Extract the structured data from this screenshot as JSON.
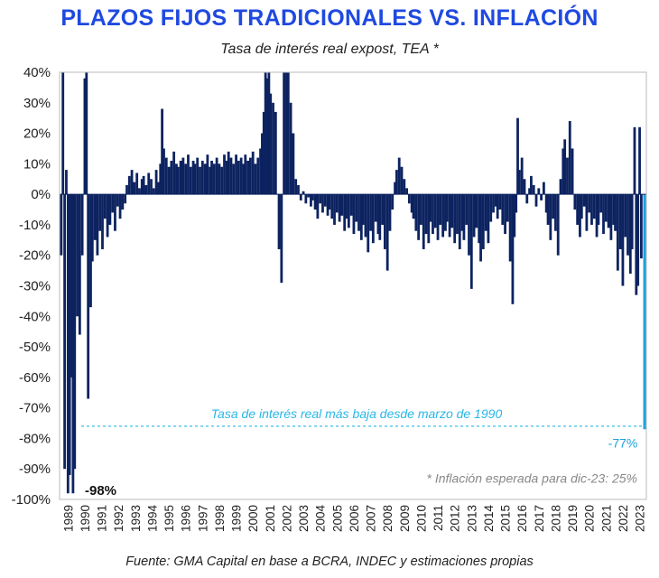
{
  "chart_data": {
    "type": "bar",
    "title": "PLAZOS FIJOS TRADICIONALES VS. INFLACIÓN",
    "subtitle": "Tasa de interés real expost, TEA *",
    "source": "Fuente: GMA Capital en base a BCRA, INDEC y estimaciones propias",
    "ylim": [
      -100,
      40
    ],
    "yticks": [
      40,
      30,
      20,
      10,
      0,
      -10,
      -20,
      -30,
      -40,
      -50,
      -60,
      -70,
      -80,
      -90,
      -100
    ],
    "ytick_labels": [
      "40%",
      "30%",
      "20%",
      "10%",
      "0%",
      "-10%",
      "-20%",
      "-30%",
      "-40%",
      "-50%",
      "-60%",
      "-70%",
      "-80%",
      "-90%",
      "-100%"
    ],
    "x_labels": [
      "1989",
      "1990",
      "1991",
      "1992",
      "1993",
      "1994",
      "1995",
      "1996",
      "1997",
      "1998",
      "1999",
      "2000",
      "2001",
      "2002",
      "2003",
      "2004",
      "2005",
      "2006",
      "2007",
      "2008",
      "2009",
      "2010",
      "2011",
      "2012",
      "2013",
      "2014",
      "2015",
      "2016",
      "2017",
      "2018",
      "2019",
      "2020",
      "2021",
      "2022",
      "2023"
    ],
    "x_range": [
      1989.0,
      2023.9
    ],
    "bar_color": "#0d2360",
    "highlight_color": "#1aa3dc",
    "series": [
      {
        "name": "Tasa de interés real",
        "points": [
          [
            1989.1,
            -20
          ],
          [
            1989.2,
            40
          ],
          [
            1989.3,
            -90
          ],
          [
            1989.4,
            8
          ],
          [
            1989.5,
            -98
          ],
          [
            1989.6,
            -92
          ],
          [
            1989.7,
            -60
          ],
          [
            1989.8,
            -98
          ],
          [
            1989.9,
            -90
          ],
          [
            1990.05,
            -40
          ],
          [
            1990.2,
            -46
          ],
          [
            1990.35,
            -20
          ],
          [
            1990.5,
            38
          ],
          [
            1990.6,
            40
          ],
          [
            1990.7,
            -67
          ],
          [
            1990.85,
            -37
          ],
          [
            1990.95,
            -22
          ],
          [
            1991.1,
            -15
          ],
          [
            1991.25,
            -20
          ],
          [
            1991.4,
            -12
          ],
          [
            1991.55,
            -18
          ],
          [
            1991.7,
            -8
          ],
          [
            1991.85,
            -14
          ],
          [
            1992.0,
            -10
          ],
          [
            1992.15,
            -6
          ],
          [
            1992.3,
            -12
          ],
          [
            1992.45,
            -4
          ],
          [
            1992.6,
            -8
          ],
          [
            1992.75,
            -5
          ],
          [
            1992.9,
            -3
          ],
          [
            1993.0,
            3
          ],
          [
            1993.15,
            6
          ],
          [
            1993.3,
            8
          ],
          [
            1993.45,
            4
          ],
          [
            1993.6,
            7
          ],
          [
            1993.75,
            2
          ],
          [
            1993.9,
            5
          ],
          [
            1994.0,
            6
          ],
          [
            1994.15,
            3
          ],
          [
            1994.3,
            7
          ],
          [
            1994.45,
            5
          ],
          [
            1994.6,
            2
          ],
          [
            1994.75,
            8
          ],
          [
            1994.9,
            4
          ],
          [
            1995.0,
            10
          ],
          [
            1995.1,
            28
          ],
          [
            1995.2,
            15
          ],
          [
            1995.35,
            12
          ],
          [
            1995.5,
            9
          ],
          [
            1995.65,
            11
          ],
          [
            1995.8,
            14
          ],
          [
            1995.95,
            10
          ],
          [
            1996.05,
            9
          ],
          [
            1996.2,
            11
          ],
          [
            1996.35,
            12
          ],
          [
            1996.5,
            10
          ],
          [
            1996.65,
            13
          ],
          [
            1996.8,
            9
          ],
          [
            1996.95,
            11
          ],
          [
            1997.05,
            10
          ],
          [
            1997.2,
            12
          ],
          [
            1997.35,
            9
          ],
          [
            1997.5,
            11
          ],
          [
            1997.65,
            10
          ],
          [
            1997.8,
            13
          ],
          [
            1997.95,
            9
          ],
          [
            1998.05,
            11
          ],
          [
            1998.2,
            10
          ],
          [
            1998.35,
            12
          ],
          [
            1998.5,
            10
          ],
          [
            1998.65,
            9
          ],
          [
            1998.8,
            13
          ],
          [
            1998.95,
            11
          ],
          [
            1999.05,
            14
          ],
          [
            1999.2,
            12
          ],
          [
            1999.35,
            10
          ],
          [
            1999.5,
            13
          ],
          [
            1999.65,
            11
          ],
          [
            1999.8,
            12
          ],
          [
            1999.95,
            10
          ],
          [
            2000.05,
            13
          ],
          [
            2000.2,
            11
          ],
          [
            2000.35,
            12
          ],
          [
            2000.5,
            14
          ],
          [
            2000.65,
            10
          ],
          [
            2000.8,
            12
          ],
          [
            2000.95,
            15
          ],
          [
            2001.05,
            20
          ],
          [
            2001.15,
            27
          ],
          [
            2001.25,
            40
          ],
          [
            2001.35,
            38
          ],
          [
            2001.45,
            40
          ],
          [
            2001.55,
            33
          ],
          [
            2001.7,
            30
          ],
          [
            2001.85,
            27
          ],
          [
            2002.05,
            -18
          ],
          [
            2002.2,
            -29
          ],
          [
            2002.35,
            40
          ],
          [
            2002.5,
            40
          ],
          [
            2002.6,
            40
          ],
          [
            2002.75,
            30
          ],
          [
            2002.9,
            20
          ],
          [
            2003.05,
            5
          ],
          [
            2003.2,
            3
          ],
          [
            2003.35,
            -2
          ],
          [
            2003.5,
            1
          ],
          [
            2003.65,
            -3
          ],
          [
            2003.8,
            -1
          ],
          [
            2003.95,
            -4
          ],
          [
            2004.05,
            -2
          ],
          [
            2004.2,
            -5
          ],
          [
            2004.35,
            -8
          ],
          [
            2004.5,
            -3
          ],
          [
            2004.65,
            -6
          ],
          [
            2004.8,
            -4
          ],
          [
            2004.95,
            -7
          ],
          [
            2005.05,
            -5
          ],
          [
            2005.2,
            -8
          ],
          [
            2005.35,
            -10
          ],
          [
            2005.5,
            -6
          ],
          [
            2005.65,
            -9
          ],
          [
            2005.8,
            -7
          ],
          [
            2005.95,
            -12
          ],
          [
            2006.05,
            -8
          ],
          [
            2006.2,
            -11
          ],
          [
            2006.35,
            -7
          ],
          [
            2006.5,
            -13
          ],
          [
            2006.65,
            -9
          ],
          [
            2006.8,
            -12
          ],
          [
            2006.95,
            -15
          ],
          [
            2007.05,
            -10
          ],
          [
            2007.2,
            -14
          ],
          [
            2007.35,
            -19
          ],
          [
            2007.5,
            -12
          ],
          [
            2007.65,
            -16
          ],
          [
            2007.8,
            -9
          ],
          [
            2007.95,
            -13
          ],
          [
            2008.05,
            -15
          ],
          [
            2008.2,
            -10
          ],
          [
            2008.35,
            -18
          ],
          [
            2008.5,
            -25
          ],
          [
            2008.65,
            -12
          ],
          [
            2008.8,
            -5
          ],
          [
            2008.95,
            4
          ],
          [
            2009.05,
            8
          ],
          [
            2009.2,
            12
          ],
          [
            2009.35,
            9
          ],
          [
            2009.5,
            5
          ],
          [
            2009.65,
            2
          ],
          [
            2009.8,
            -3
          ],
          [
            2009.95,
            -6
          ],
          [
            2010.05,
            -8
          ],
          [
            2010.2,
            -12
          ],
          [
            2010.35,
            -15
          ],
          [
            2010.5,
            -10
          ],
          [
            2010.65,
            -18
          ],
          [
            2010.8,
            -13
          ],
          [
            2010.95,
            -16
          ],
          [
            2011.05,
            -9
          ],
          [
            2011.2,
            -13
          ],
          [
            2011.35,
            -11
          ],
          [
            2011.5,
            -15
          ],
          [
            2011.65,
            -10
          ],
          [
            2011.8,
            -14
          ],
          [
            2011.95,
            -12
          ],
          [
            2012.05,
            -9
          ],
          [
            2012.2,
            -14
          ],
          [
            2012.35,
            -11
          ],
          [
            2012.5,
            -16
          ],
          [
            2012.65,
            -13
          ],
          [
            2012.8,
            -18
          ],
          [
            2012.95,
            -12
          ],
          [
            2013.05,
            -15
          ],
          [
            2013.2,
            -10
          ],
          [
            2013.35,
            -20
          ],
          [
            2013.5,
            -31
          ],
          [
            2013.65,
            -14
          ],
          [
            2013.8,
            -11
          ],
          [
            2013.95,
            -16
          ],
          [
            2014.05,
            -22
          ],
          [
            2014.2,
            -18
          ],
          [
            2014.35,
            -12
          ],
          [
            2014.5,
            -16
          ],
          [
            2014.65,
            -9
          ],
          [
            2014.8,
            -6
          ],
          [
            2014.95,
            -4
          ],
          [
            2015.05,
            -8
          ],
          [
            2015.2,
            -5
          ],
          [
            2015.35,
            -10
          ],
          [
            2015.5,
            -13
          ],
          [
            2015.65,
            -9
          ],
          [
            2015.8,
            -22
          ],
          [
            2015.95,
            -36
          ],
          [
            2016.05,
            -14
          ],
          [
            2016.15,
            -6
          ],
          [
            2016.25,
            25
          ],
          [
            2016.35,
            8
          ],
          [
            2016.5,
            12
          ],
          [
            2016.65,
            5
          ],
          [
            2016.8,
            -3
          ],
          [
            2016.95,
            2
          ],
          [
            2017.05,
            6
          ],
          [
            2017.2,
            3
          ],
          [
            2017.35,
            -4
          ],
          [
            2017.5,
            2
          ],
          [
            2017.65,
            -2
          ],
          [
            2017.8,
            4
          ],
          [
            2017.95,
            -6
          ],
          [
            2018.05,
            -10
          ],
          [
            2018.2,
            -15
          ],
          [
            2018.35,
            -8
          ],
          [
            2018.5,
            -12
          ],
          [
            2018.65,
            -20
          ],
          [
            2018.8,
            5
          ],
          [
            2018.95,
            15
          ],
          [
            2019.05,
            18
          ],
          [
            2019.2,
            12
          ],
          [
            2019.35,
            24
          ],
          [
            2019.5,
            15
          ],
          [
            2019.65,
            -5
          ],
          [
            2019.8,
            -10
          ],
          [
            2019.95,
            -14
          ],
          [
            2020.05,
            -8
          ],
          [
            2020.2,
            -4
          ],
          [
            2020.35,
            -12
          ],
          [
            2020.5,
            -6
          ],
          [
            2020.65,
            -10
          ],
          [
            2020.8,
            -8
          ],
          [
            2020.95,
            -14
          ],
          [
            2021.05,
            -10
          ],
          [
            2021.2,
            -6
          ],
          [
            2021.35,
            -13
          ],
          [
            2021.5,
            -9
          ],
          [
            2021.65,
            -11
          ],
          [
            2021.8,
            -15
          ],
          [
            2021.95,
            -10
          ],
          [
            2022.05,
            -12
          ],
          [
            2022.2,
            -25
          ],
          [
            2022.35,
            -18
          ],
          [
            2022.5,
            -30
          ],
          [
            2022.65,
            -14
          ],
          [
            2022.8,
            -20
          ],
          [
            2022.95,
            -26
          ],
          [
            2023.05,
            -18
          ],
          [
            2023.2,
            22
          ],
          [
            2023.3,
            -33
          ],
          [
            2023.4,
            -30
          ],
          [
            2023.5,
            22
          ],
          [
            2023.6,
            -21
          ]
        ],
        "highlight_point": [
          2023.8,
          -77
        ]
      }
    ],
    "reference_line": {
      "value": -76,
      "label": "Tasa de interés real más baja desde marzo de 1990"
    },
    "annotations": {
      "min_1990": "-98%",
      "latest": "-77%",
      "footnote": "* Inflación esperada para dic-23: 25%"
    }
  }
}
